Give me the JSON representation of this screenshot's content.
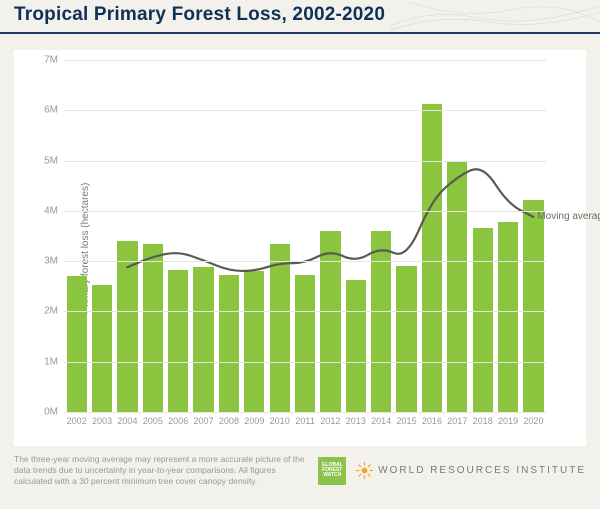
{
  "title": {
    "text": "Tropical Primary Forest Loss, 2002-2020",
    "color": "#0f3057",
    "fontsize": 19
  },
  "chart": {
    "type": "bar+line",
    "background_color": "#ffffff",
    "page_background": "#f3f1ec",
    "ylabel": "Primary forest loss (hectares)",
    "ylim": [
      0,
      7000000
    ],
    "yticks": [
      0,
      1000000,
      2000000,
      3000000,
      4000000,
      5000000,
      6000000,
      7000000
    ],
    "ytick_labels": [
      "0M",
      "1M",
      "2M",
      "3M",
      "4M",
      "5M",
      "6M",
      "7M"
    ],
    "grid_color": "#e6e4dd",
    "axis_label_color": "#9a998f",
    "bar_color": "#8bc53f",
    "bar_width": 0.8,
    "years": [
      2002,
      2003,
      2004,
      2005,
      2006,
      2007,
      2008,
      2009,
      2010,
      2011,
      2012,
      2013,
      2014,
      2015,
      2016,
      2017,
      2018,
      2019,
      2020
    ],
    "values": [
      2700000,
      2530000,
      3400000,
      3350000,
      2820000,
      2880000,
      2720000,
      2800000,
      3350000,
      2720000,
      3600000,
      2630000,
      3600000,
      2910000,
      6120000,
      5000000,
      3650000,
      3780000,
      4210000
    ],
    "moving_average": {
      "label": "Moving average",
      "label_color": "#6b6b63",
      "line_color": "#5a5a52",
      "line_width": 2.2,
      "years": [
        2004,
        2005,
        2006,
        2007,
        2008,
        2009,
        2010,
        2011,
        2012,
        2013,
        2014,
        2015,
        2016,
        2017,
        2018,
        2019,
        2020
      ],
      "values": [
        2880000,
        3090000,
        3190000,
        3020000,
        2810000,
        2800000,
        2960000,
        2960000,
        3220000,
        2980000,
        3280000,
        3050000,
        4210000,
        4680000,
        4920000,
        4140000,
        3880000
      ]
    }
  },
  "footer": {
    "note": "The three-year moving average may represent a more accurate picture of the data trends due to uncertainty in year-to-year comparisons. All figures calculated with a 30 percent minimum tree cover canopy density.",
    "gfw_badge": "GLOBAL FOREST WATCH",
    "wri_label": "WORLD RESOURCES INSTITUTE",
    "gfw_color": "#8bc34a",
    "wri_icon_color": "#f5a623",
    "wri_text_color": "#7a7a72"
  }
}
